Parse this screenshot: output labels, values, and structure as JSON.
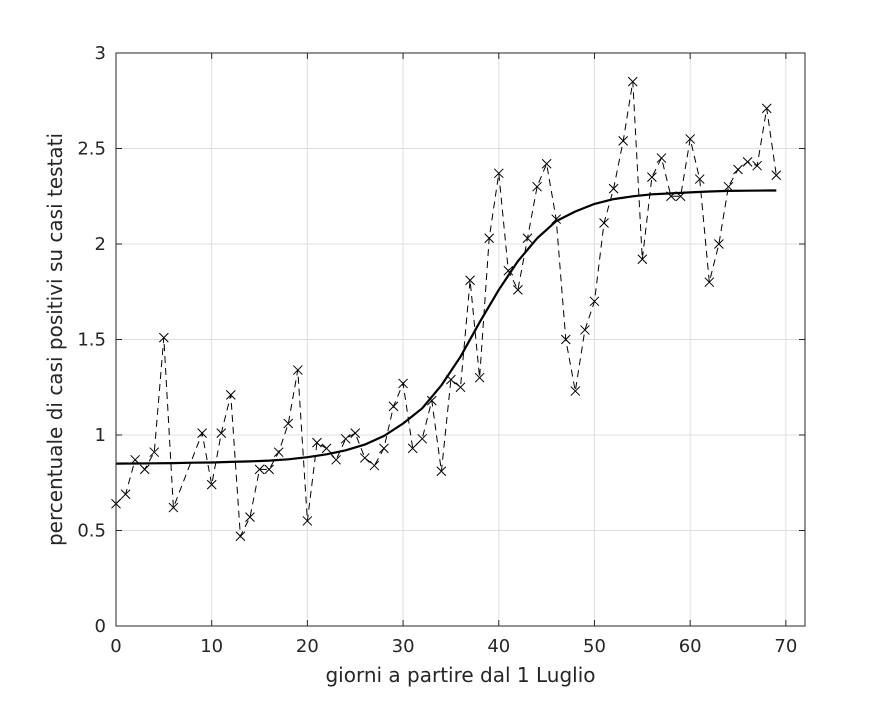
{
  "chart_data": {
    "type": "line",
    "xlabel": "giorni a partire dal 1 Luglio",
    "ylabel": "percentuale di casi positivi su casi testati",
    "xlim": [
      0,
      72
    ],
    "ylim": [
      0,
      3
    ],
    "grid": true,
    "x_ticks": [
      0,
      10,
      20,
      30,
      40,
      50,
      60,
      70
    ],
    "y_ticks": [
      0,
      0.5,
      1,
      1.5,
      2,
      2.5,
      3
    ],
    "x_tick_labels": [
      "0",
      "10",
      "20",
      "30",
      "40",
      "50",
      "60",
      "70"
    ],
    "y_tick_labels": [
      "0",
      "0.5",
      "1",
      "1.5",
      "2",
      "2.5",
      "3"
    ],
    "series": [
      {
        "style": "dashed line with x markers",
        "color": "#000000",
        "x": [
          0,
          1,
          2,
          3,
          4,
          5,
          6,
          9,
          10,
          11,
          12,
          13,
          14,
          15,
          16,
          17,
          18,
          19,
          20,
          21,
          22,
          23,
          24,
          25,
          26,
          27,
          28,
          29,
          30,
          31,
          32,
          33,
          34,
          35,
          36,
          37,
          38,
          39,
          40,
          41,
          42,
          43,
          44,
          45,
          46,
          47,
          48,
          49,
          50,
          51,
          52,
          53,
          54,
          55,
          56,
          57,
          58,
          59,
          60,
          61,
          62,
          63,
          64,
          65,
          66,
          67,
          68,
          69
        ],
        "y": [
          0.64,
          0.69,
          0.87,
          0.82,
          0.91,
          1.51,
          0.62,
          1.01,
          0.74,
          1.01,
          1.21,
          0.47,
          0.57,
          0.82,
          0.82,
          0.91,
          1.06,
          1.34,
          0.55,
          0.96,
          0.93,
          0.87,
          0.98,
          1.01,
          0.88,
          0.84,
          0.93,
          1.15,
          1.27,
          0.93,
          0.98,
          1.18,
          0.81,
          1.29,
          1.25,
          1.81,
          1.3,
          2.03,
          2.37,
          1.86,
          1.76,
          2.03,
          2.3,
          2.42,
          2.13,
          1.5,
          1.23,
          1.55,
          1.7,
          2.11,
          2.29,
          2.54,
          2.85,
          1.92,
          2.35,
          2.45,
          2.25,
          2.25,
          2.55,
          2.34,
          1.8,
          2.0,
          2.3,
          2.39,
          2.43,
          2.41,
          2.71,
          2.36
        ]
      },
      {
        "style": "solid fitted curve",
        "color": "#000000",
        "x": [
          0,
          2,
          4,
          6,
          8,
          10,
          12,
          14,
          16,
          18,
          20,
          22,
          24,
          26,
          28,
          30,
          32,
          34,
          36,
          38,
          40,
          42,
          44,
          46,
          48,
          50,
          52,
          54,
          56,
          58,
          60,
          62,
          64,
          66,
          68,
          69
        ],
        "y": [
          0.85,
          0.851,
          0.852,
          0.853,
          0.855,
          0.856,
          0.859,
          0.862,
          0.866,
          0.873,
          0.884,
          0.899,
          0.92,
          0.95,
          0.995,
          1.06,
          1.14,
          1.26,
          1.41,
          1.59,
          1.76,
          1.91,
          2.03,
          2.12,
          2.17,
          2.21,
          2.235,
          2.25,
          2.26,
          2.265,
          2.27,
          2.275,
          2.278,
          2.279,
          2.28,
          2.28
        ]
      }
    ]
  }
}
